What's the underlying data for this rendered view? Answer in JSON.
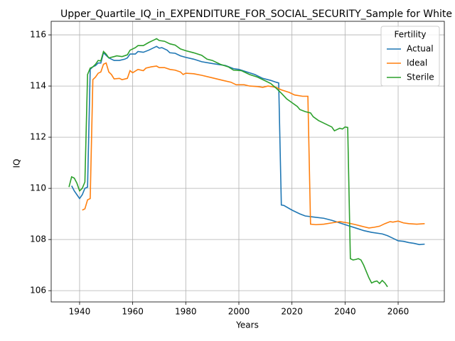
{
  "chart_data": {
    "type": "line",
    "title": "Upper_Quartile_IQ_in_EXPENDITURE_FOR_SOCIAL_SECURITY_Sample for White",
    "x_label": "Years",
    "y_label": "IQ",
    "legend_title": "Fertility",
    "legend_loc": "upper right",
    "grid": true,
    "xlim": [
      1929.3,
      2077.4
    ],
    "ylim": [
      105.56,
      116.53
    ],
    "xticks": [
      1940,
      1960,
      1980,
      2000,
      2020,
      2040,
      2060
    ],
    "yticks": [
      106,
      108,
      110,
      112,
      114,
      116
    ],
    "series": [
      {
        "name": "Actual",
        "color": "#1f77b4",
        "x": [
          1937,
          1938,
          1939,
          1940,
          1941,
          1942,
          1943,
          1944,
          1945,
          1946,
          1947,
          1948,
          1949,
          1950,
          1951,
          1952,
          1953,
          1955,
          1957,
          1958,
          1959,
          1961,
          1962,
          1964,
          1966,
          1968,
          1969,
          1970,
          1971,
          1973,
          1974,
          1976,
          1978,
          1980,
          1983,
          1986,
          1990,
          1995,
          1998,
          2000,
          2003,
          2006,
          2009,
          2012,
          2014,
          2015,
          2016,
          2017,
          2020,
          2023,
          2025,
          2028,
          2032,
          2035,
          2038,
          2041,
          2044,
          2047,
          2050,
          2054,
          2056,
          2058,
          2060,
          2062,
          2064,
          2066,
          2068,
          2070
        ],
        "values": [
          110.1,
          109.9,
          109.75,
          109.6,
          109.75,
          110.0,
          110.05,
          114.65,
          114.75,
          114.8,
          114.9,
          114.9,
          115.3,
          115.2,
          115.1,
          115.05,
          115.0,
          115.0,
          115.05,
          115.1,
          115.25,
          115.25,
          115.35,
          115.32,
          115.4,
          115.5,
          115.55,
          115.48,
          115.5,
          115.4,
          115.3,
          115.28,
          115.18,
          115.12,
          115.05,
          114.95,
          114.88,
          114.8,
          114.68,
          114.65,
          114.55,
          114.45,
          114.3,
          114.22,
          114.15,
          114.12,
          109.35,
          109.33,
          109.15,
          109.0,
          108.92,
          108.88,
          108.83,
          108.75,
          108.65,
          108.55,
          108.45,
          108.35,
          108.28,
          108.22,
          108.15,
          108.05,
          107.95,
          107.93,
          107.88,
          107.85,
          107.8,
          107.82
        ]
      },
      {
        "name": "Ideal",
        "color": "#ff7f0e",
        "x": [
          1941,
          1942,
          1943,
          1944,
          1945,
          1946,
          1947,
          1948,
          1949,
          1950,
          1951,
          1952,
          1953,
          1955,
          1956,
          1958,
          1959,
          1960,
          1962,
          1964,
          1965,
          1967,
          1969,
          1970,
          1972,
          1974,
          1976,
          1978,
          1979,
          1980,
          1983,
          1986,
          1990,
          1994,
          1997,
          1999,
          2002,
          2004,
          2007,
          2009,
          2011,
          2014,
          2016,
          2019,
          2021,
          2024,
          2026,
          2027,
          2029,
          2032,
          2035,
          2038,
          2041,
          2044,
          2047,
          2049,
          2051,
          2053,
          2055,
          2057,
          2058,
          2060,
          2062,
          2064,
          2067,
          2070
        ],
        "values": [
          109.15,
          109.2,
          109.55,
          109.6,
          114.25,
          114.35,
          114.5,
          114.55,
          114.85,
          114.9,
          114.55,
          114.45,
          114.28,
          114.3,
          114.25,
          114.3,
          114.6,
          114.52,
          114.65,
          114.6,
          114.7,
          114.75,
          114.78,
          114.72,
          114.72,
          114.65,
          114.62,
          114.55,
          114.45,
          114.5,
          114.48,
          114.42,
          114.32,
          114.22,
          114.15,
          114.05,
          114.05,
          114.0,
          113.98,
          113.95,
          114.0,
          113.95,
          113.85,
          113.75,
          113.65,
          113.6,
          113.6,
          108.6,
          108.58,
          108.6,
          108.65,
          108.7,
          108.65,
          108.58,
          108.5,
          108.45,
          108.48,
          108.52,
          108.62,
          108.7,
          108.68,
          108.72,
          108.65,
          108.62,
          108.6,
          108.62
        ]
      },
      {
        "name": "Sterile",
        "color": "#2ca02c",
        "x": [
          1936,
          1937,
          1938,
          1939,
          1940,
          1941,
          1942,
          1943,
          1944,
          1945,
          1946,
          1947,
          1948,
          1949,
          1950,
          1951,
          1953,
          1954,
          1956,
          1958,
          1959,
          1961,
          1962,
          1964,
          1966,
          1968,
          1969,
          1970,
          1972,
          1974,
          1976,
          1978,
          1980,
          1983,
          1986,
          1988,
          1990,
          1993,
          1996,
          1998,
          2001,
          2004,
          2007,
          2010,
          2012,
          2014,
          2016,
          2018,
          2020,
          2022,
          2023,
          2025,
          2027,
          2028,
          2030,
          2032,
          2034,
          2035,
          2036,
          2037,
          2038,
          2039,
          2040,
          2041,
          2042,
          2043,
          2044,
          2045,
          2046,
          2047,
          2048,
          2049,
          2050,
          2051,
          2052,
          2053,
          2054,
          2055,
          2056
        ],
        "values": [
          110.05,
          110.45,
          110.4,
          110.2,
          109.9,
          110.0,
          110.25,
          114.45,
          114.7,
          114.75,
          114.85,
          115.0,
          114.98,
          115.35,
          115.25,
          115.1,
          115.15,
          115.18,
          115.15,
          115.22,
          115.4,
          115.5,
          115.58,
          115.58,
          115.7,
          115.8,
          115.85,
          115.78,
          115.75,
          115.65,
          115.6,
          115.45,
          115.38,
          115.3,
          115.2,
          115.05,
          115.0,
          114.85,
          114.75,
          114.62,
          114.6,
          114.45,
          114.35,
          114.2,
          114.1,
          113.92,
          113.72,
          113.5,
          113.35,
          113.2,
          113.08,
          113.0,
          112.95,
          112.8,
          112.65,
          112.55,
          112.45,
          112.4,
          112.25,
          112.3,
          112.35,
          112.32,
          112.4,
          112.38,
          107.25,
          107.2,
          107.22,
          107.25,
          107.2,
          107.0,
          106.75,
          106.5,
          106.3,
          106.35,
          106.38,
          106.28,
          106.4,
          106.3,
          106.15
        ]
      }
    ]
  }
}
